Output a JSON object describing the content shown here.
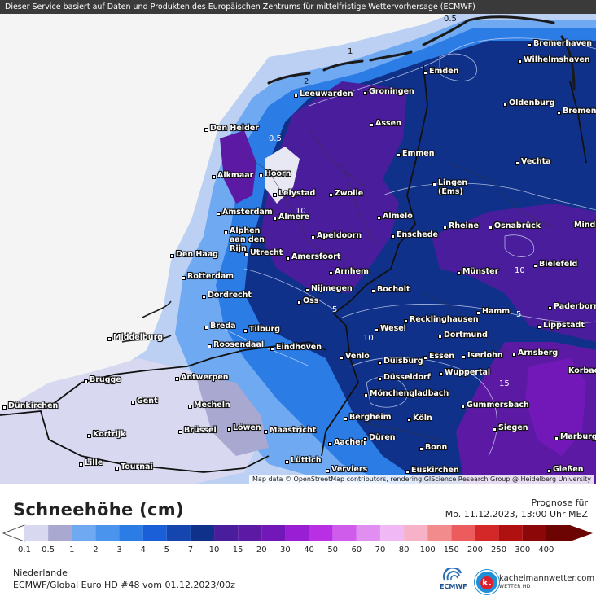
{
  "header": {
    "text": "Dieser Service basiert auf Daten und Produkten des Europäischen Zentrums für mittelfristige Wettervorhersage (ECMWF)"
  },
  "map": {
    "credit": "Map data © OpenStreetMap contributors, rendering GIScience Research Group @ Heidelberg University",
    "cities": [
      {
        "name": "Bremerhaven"
      },
      {
        "name": "Wilhelmshaven"
      },
      {
        "name": "Emden"
      },
      {
        "name": "Oldenburg"
      },
      {
        "name": "Bremen"
      },
      {
        "name": "Leeuwarden"
      },
      {
        "name": "Groningen"
      },
      {
        "name": "Assen"
      },
      {
        "name": "Den Helder"
      },
      {
        "name": "Emmen"
      },
      {
        "name": "Vechta"
      },
      {
        "name": "Alkmaar"
      },
      {
        "name": "Hoorn"
      },
      {
        "name": "Lingen (Ems)"
      },
      {
        "name": "Lelystad"
      },
      {
        "name": "Zwolle"
      },
      {
        "name": "Amsterdam"
      },
      {
        "name": "Almere"
      },
      {
        "name": "Almelo"
      },
      {
        "name": "Mind"
      },
      {
        "name": "Rheine"
      },
      {
        "name": "Osnabrück"
      },
      {
        "name": "Alphen aan den Rijn"
      },
      {
        "name": "Apeldoorn"
      },
      {
        "name": "Enschede"
      },
      {
        "name": "Den Haag"
      },
      {
        "name": "Utrecht"
      },
      {
        "name": "Amersfoort"
      },
      {
        "name": "Bielefeld"
      },
      {
        "name": "Arnhem"
      },
      {
        "name": "Rotterdam"
      },
      {
        "name": "Münster"
      },
      {
        "name": "Nijmegen"
      },
      {
        "name": "Bocholt"
      },
      {
        "name": "Dordrecht"
      },
      {
        "name": "Oss"
      },
      {
        "name": "Paderborn"
      },
      {
        "name": "Hamm"
      },
      {
        "name": "Recklinghausen"
      },
      {
        "name": "Lippstadt"
      },
      {
        "name": "Breda"
      },
      {
        "name": "Tilburg"
      },
      {
        "name": "Wesel"
      },
      {
        "name": "Dortmund"
      },
      {
        "name": "Middelburg"
      },
      {
        "name": "Roosendaal"
      },
      {
        "name": "Eindhoven"
      },
      {
        "name": "Venlo"
      },
      {
        "name": "Duisburg"
      },
      {
        "name": "Essen"
      },
      {
        "name": "Iserlohn"
      },
      {
        "name": "Arnsberg"
      },
      {
        "name": "Korbac"
      },
      {
        "name": "Düsseldorf"
      },
      {
        "name": "Wuppertal"
      },
      {
        "name": "Brugge"
      },
      {
        "name": "Antwerpen"
      },
      {
        "name": "Mönchengladbach"
      },
      {
        "name": "Gummersbach"
      },
      {
        "name": "Gent"
      },
      {
        "name": "Dünkirchen"
      },
      {
        "name": "Mecheln"
      },
      {
        "name": "Bergheim"
      },
      {
        "name": "Köln"
      },
      {
        "name": "Siegen"
      },
      {
        "name": "Kortrijk"
      },
      {
        "name": "Brüssel"
      },
      {
        "name": "Löwen"
      },
      {
        "name": "Maastricht"
      },
      {
        "name": "Aachen"
      },
      {
        "name": "Düren"
      },
      {
        "name": "Bonn"
      },
      {
        "name": "Marburg"
      },
      {
        "name": "Lille"
      },
      {
        "name": "Tournai"
      },
      {
        "name": "Lüttich"
      },
      {
        "name": "Verviers"
      },
      {
        "name": "Euskirchen"
      },
      {
        "name": "Gießen"
      }
    ],
    "contour_labels": [
      "0.5",
      "1",
      "2",
      "0.5",
      "10",
      "5",
      "10",
      "5",
      "15",
      "10"
    ]
  },
  "legend": {
    "title": "Schneehöhe (cm)",
    "forecast_label": "Prognose für",
    "forecast_time": "Mo. 11.12.2023, 13:00 Uhr MEZ",
    "ticks": [
      "0.1",
      "0.5",
      "1",
      "2",
      "3",
      "4",
      "5",
      "7",
      "10",
      "15",
      "20",
      "30",
      "40",
      "50",
      "60",
      "70",
      "80",
      "100",
      "150",
      "200",
      "250",
      "300",
      "400"
    ],
    "colors": [
      "#d8d8f0",
      "#a8a8d0",
      "#6fa9f2",
      "#4a94ee",
      "#2c7ce6",
      "#1a5fd8",
      "#1546b0",
      "#10318a",
      "#4a1d9c",
      "#5c1aa4",
      "#7318b8",
      "#9a1ed4",
      "#b92fe4",
      "#cf5ceb",
      "#e08ef0",
      "#f0b8f4",
      "#f6b2c6",
      "#f28c8c",
      "#ec5c5c",
      "#d42828",
      "#b01010",
      "#8c0808",
      "#6c0404"
    ]
  },
  "footer": {
    "region": "Niederlande",
    "model": "ECMWF/Global Euro HD #48 vom  01.12.2023/00z",
    "ecmwf_label": "ECMWF",
    "brand": "kachelmannwetter.com",
    "brand_sub": "WETTER HD",
    "brand_logo_letter": "k."
  }
}
